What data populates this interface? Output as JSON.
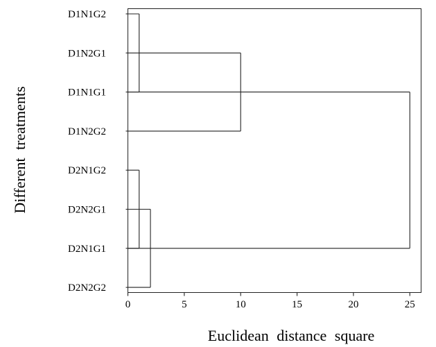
{
  "chart_data": {
    "type": "dendrogram",
    "title": "",
    "xlabel": "Euclidean distance square",
    "ylabel": "Different treatments",
    "xlim": [
      0,
      26
    ],
    "xticks": [
      0,
      5,
      10,
      15,
      20,
      25
    ],
    "leaves": [
      "D1N1G2",
      "D1N2G1",
      "D1N1G1",
      "D1N2G2",
      "D2N1G2",
      "D2N2G1",
      "D2N1G1",
      "D2N2G2"
    ],
    "merges": [
      {
        "left": [
          "D1N1G2"
        ],
        "right": [
          "D1N1G1"
        ],
        "distance": 1
      },
      {
        "left": [
          "D2N1G2"
        ],
        "right": [
          "D2N1G1"
        ],
        "distance": 1
      },
      {
        "left": [
          "D2N1G2",
          "D2N1G1"
        ],
        "right": [
          "D2N2G2"
        ],
        "distance": 2
      },
      {
        "left": [
          "D1N2G1"
        ],
        "right": [
          "D1N2G2"
        ],
        "distance": 10
      },
      {
        "left": [
          "D1N1G2",
          "D1N1G1"
        ],
        "right": [
          "D1N2G1",
          "D1N2G2"
        ],
        "distance": 10
      },
      {
        "left": [
          "D1N1G2",
          "D1N2G1",
          "D1N1G1",
          "D1N2G2"
        ],
        "right": [
          "D2N1G2",
          "D2N1G1",
          "D2N2G2",
          "D2N2G1"
        ],
        "distance": 25
      }
    ],
    "links": [
      {
        "name": "link-d1n1g2-d1n1g1",
        "from_leaf": "D1N1G2",
        "to_leaf": "D1N1G1",
        "distance": 1
      },
      {
        "name": "link-d1n2g1-d1n2g2",
        "from_leaf": "D1N2G1",
        "to_leaf": "D1N2G2",
        "distance": 10
      },
      {
        "name": "link-d2n1g2-d2n1g1",
        "from_leaf": "D2N1G2",
        "to_leaf": "D2N1G1",
        "distance": 1
      },
      {
        "name": "link-d2-pair-d2n2g2",
        "from_leaf": "D2N2G1",
        "to_leaf": "D2N2G2",
        "distance": 2
      },
      {
        "name": "link-top-level",
        "from_leaf": "D1N1G1",
        "to_leaf": "D2N1G1",
        "distance": 25
      }
    ],
    "grid": false,
    "legend": "none"
  }
}
